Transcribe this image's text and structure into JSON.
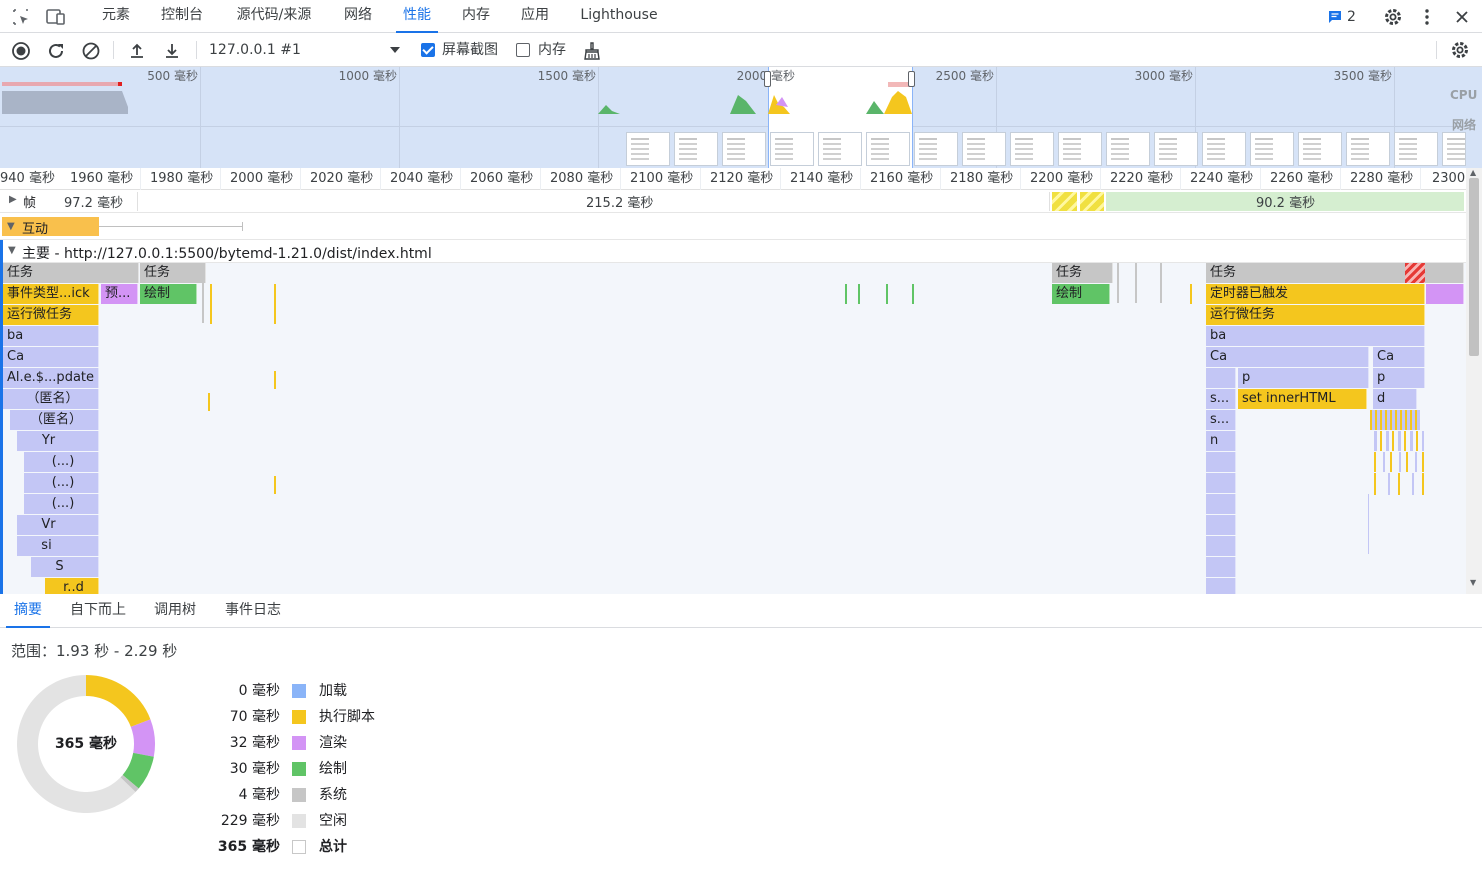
{
  "tabs": {
    "items": [
      "元素",
      "控制台",
      "源代码/来源",
      "网络",
      "性能",
      "内存",
      "应用",
      "Lighthouse"
    ],
    "active": "性能",
    "messages_count": "2"
  },
  "toolbar": {
    "profile_select": "127.0.0.1 #1",
    "screenshots_label": "屏幕截图",
    "screenshots_checked": true,
    "memory_label": "内存",
    "memory_checked": false
  },
  "overview": {
    "ticks": [
      "500 毫秒",
      "1000 毫秒",
      "1500 毫秒",
      "2000 毫秒",
      "2500 毫秒",
      "3000 毫秒",
      "3500 毫秒"
    ],
    "cpu_label": "CPU",
    "network_label": "网络"
  },
  "ruler": {
    "ticks": [
      "940 毫秒",
      "1960 毫秒",
      "1980 毫秒",
      "2000 毫秒",
      "2020 毫秒",
      "2040 毫秒",
      "2060 毫秒",
      "2080 毫秒",
      "2100 毫秒",
      "2120 毫秒",
      "2140 毫秒",
      "2160 毫秒",
      "2180 毫秒",
      "2200 毫秒",
      "2220 毫秒",
      "2240 毫秒",
      "2260 毫秒",
      "2280 毫秒",
      "2300"
    ]
  },
  "frames": {
    "label": "帧",
    "values": [
      "97.2 毫秒",
      "215.2 毫秒",
      "90.2 毫秒"
    ]
  },
  "interactions": {
    "label": "互动"
  },
  "main": {
    "label": "主要 - http://127.0.0.1:5500/bytemd-1.21.0/dist/index.html"
  },
  "flame_labels": {
    "task": "任务",
    "event_click": "事件类型...ick",
    "pre": "预...",
    "paint": "绘制",
    "microtask": "运行微任务",
    "ba": "ba",
    "ca": "Ca",
    "al_update": "Al.e.$...pdate",
    "anon": "（匿名）",
    "yr": "Yr",
    "ellipsis": "(...)",
    "vr": "Vr",
    "si": "si",
    "s": "S",
    "r_d": "r..d",
    "timer_fired": "定时器已触发",
    "p": "p",
    "s_dots": "s...",
    "set_innerhtml": "set innerHTML",
    "d": "d",
    "n": "n"
  },
  "bottom_tabs": {
    "items": [
      "摘要",
      "自下而上",
      "调用树",
      "事件日志"
    ],
    "active": "摘要"
  },
  "summary": {
    "range": "范围：1.93 秒 - 2.29 秒",
    "total_center": "365 毫秒",
    "rows": [
      {
        "value": "0 毫秒",
        "name": "加载",
        "color": "#8ab4f8"
      },
      {
        "value": "70 毫秒",
        "name": "执行脚本",
        "color": "#f4c61e"
      },
      {
        "value": "32 毫秒",
        "name": "渲染",
        "color": "#d394f5"
      },
      {
        "value": "30 毫秒",
        "name": "绘制",
        "color": "#60c466"
      },
      {
        "value": "4 毫秒",
        "name": "系统",
        "color": "#c6c6c6"
      },
      {
        "value": "229 毫秒",
        "name": "空闲",
        "color": "#e3e3e3"
      },
      {
        "value": "365 毫秒",
        "name": "总计",
        "color": "#ffffff"
      }
    ]
  }
}
